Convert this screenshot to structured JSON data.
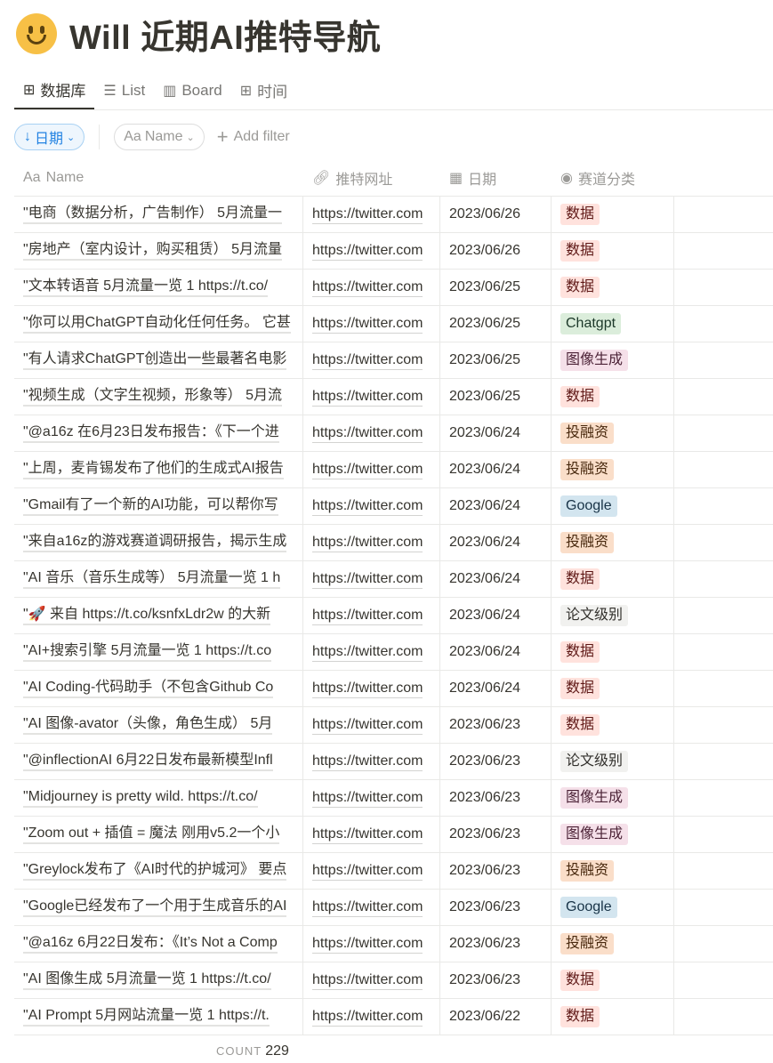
{
  "page": {
    "title": "Will 近期AI推特导航",
    "icon": "smiley-emoji-icon"
  },
  "tabs": [
    {
      "label": "数据库",
      "icon": "table-icon",
      "active": true
    },
    {
      "label": "List",
      "icon": "list-icon"
    },
    {
      "label": "Board",
      "icon": "board-icon"
    },
    {
      "label": "时间",
      "icon": "table-icon"
    }
  ],
  "filters": {
    "sort_label": "日期",
    "name_prefix": "Aa",
    "name_label": "Name",
    "add_filter": "Add filter"
  },
  "columns": {
    "name": "Name",
    "name_prefix": "Aa",
    "url": "推特网址",
    "date": "日期",
    "category": "赛道分类"
  },
  "tag_colors": {
    "数据": {
      "bg": "#ffe2dd",
      "fg": "#5d1715"
    },
    "Chatgpt": {
      "bg": "#dbeddb",
      "fg": "#1c3829"
    },
    "图像生成": {
      "bg": "#f5e0e9",
      "fg": "#4c2337"
    },
    "投融资": {
      "bg": "#fadec9",
      "fg": "#49290e"
    },
    "Google": {
      "bg": "#d3e5ef",
      "fg": "#183347"
    },
    "论文级别": {
      "bg": "#f1f1ef",
      "fg": "#32302c"
    }
  },
  "rows": [
    {
      "name": "\"电商（数据分析，广告制作） 5月流量一",
      "url": "https://twitter.com",
      "date": "2023/06/26",
      "tag": "数据"
    },
    {
      "name": "\"房地产（室内设计，购买租赁） 5月流量",
      "url": "https://twitter.com",
      "date": "2023/06/26",
      "tag": "数据"
    },
    {
      "name": "\"文本转语音 5月流量一览 1 https://t.co/",
      "url": "https://twitter.com",
      "date": "2023/06/25",
      "tag": "数据"
    },
    {
      "name": "\"你可以用ChatGPT自动化任何任务。 它甚",
      "url": "https://twitter.com",
      "date": "2023/06/25",
      "tag": "Chatgpt"
    },
    {
      "name": "\"有人请求ChatGPT创造出一些最著名电影",
      "url": "https://twitter.com",
      "date": "2023/06/25",
      "tag": "图像生成"
    },
    {
      "name": "\"视频生成（文字生视频，形象等） 5月流",
      "url": "https://twitter.com",
      "date": "2023/06/25",
      "tag": "数据"
    },
    {
      "name": "\"@a16z 在6月23日发布报告：《下一个进",
      "url": "https://twitter.com",
      "date": "2023/06/24",
      "tag": "投融资"
    },
    {
      "name": "\"上周，麦肯锡发布了他们的生成式AI报告",
      "url": "https://twitter.com",
      "date": "2023/06/24",
      "tag": "投融资"
    },
    {
      "name": "\"Gmail有了一个新的AI功能，可以帮你写",
      "url": "https://twitter.com",
      "date": "2023/06/24",
      "tag": "Google"
    },
    {
      "name": "\"来自a16z的游戏赛道调研报告，揭示生成",
      "url": "https://twitter.com",
      "date": "2023/06/24",
      "tag": "投融资"
    },
    {
      "name": "\"AI 音乐（音乐生成等） 5月流量一览 1 h",
      "url": "https://twitter.com",
      "date": "2023/06/24",
      "tag": "数据"
    },
    {
      "name": "\"🚀 来自 https://t.co/ksnfxLdr2w 的大新",
      "url": "https://twitter.com",
      "date": "2023/06/24",
      "tag": "论文级别"
    },
    {
      "name": "\"AI+搜索引擎 5月流量一览 1 https://t.co",
      "url": "https://twitter.com",
      "date": "2023/06/24",
      "tag": "数据"
    },
    {
      "name": "\"AI Coding-代码助手（不包含Github Co",
      "url": "https://twitter.com",
      "date": "2023/06/24",
      "tag": "数据"
    },
    {
      "name": "\"AI 图像-avator（头像，角色生成） 5月",
      "url": "https://twitter.com",
      "date": "2023/06/23",
      "tag": "数据"
    },
    {
      "name": "\"@inflectionAI 6月22日发布最新模型Infl",
      "url": "https://twitter.com",
      "date": "2023/06/23",
      "tag": "论文级别"
    },
    {
      "name": "\"Midjourney is pretty wild. https://t.co/",
      "url": "https://twitter.com",
      "date": "2023/06/23",
      "tag": "图像生成"
    },
    {
      "name": "\"Zoom out + 插值 = 魔法 刚用v5.2一个小",
      "url": "https://twitter.com",
      "date": "2023/06/23",
      "tag": "图像生成"
    },
    {
      "name": "\"Greylock发布了《AI时代的护城河》 要点",
      "url": "https://twitter.com",
      "date": "2023/06/23",
      "tag": "投融资"
    },
    {
      "name": "\"Google已经发布了一个用于生成音乐的AI",
      "url": "https://twitter.com",
      "date": "2023/06/23",
      "tag": "Google"
    },
    {
      "name": "\"@a16z 6月22日发布：《It’s Not a Comp",
      "url": "https://twitter.com",
      "date": "2023/06/23",
      "tag": "投融资"
    },
    {
      "name": "\"AI 图像生成 5月流量一览 1 https://t.co/",
      "url": "https://twitter.com",
      "date": "2023/06/23",
      "tag": "数据"
    },
    {
      "name": "\"AI Prompt 5月网站流量一览 1 https://t.",
      "url": "https://twitter.com",
      "date": "2023/06/22",
      "tag": "数据"
    }
  ],
  "footer": {
    "count_label": "COUNT",
    "count_value": "229"
  }
}
